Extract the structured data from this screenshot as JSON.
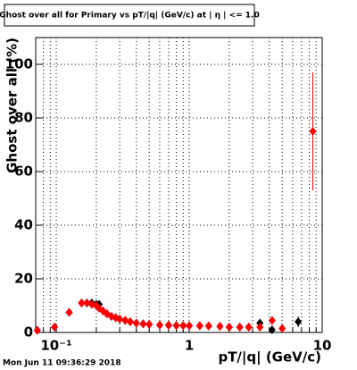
{
  "chart_data": {
    "type": "scatter",
    "title": "Ghost over all for Primary vs pT/|q| (GeV/c) at | η | <= 1.0",
    "x_label": "pT/|q| (GeV/c)",
    "y_label": "Ghost over all (%)",
    "timestamp": "Mon Jun 11 09:36:29 2018",
    "x": [
      0.072,
      0.097,
      0.125,
      0.155,
      0.17,
      0.185,
      0.2,
      0.21,
      0.225,
      0.24,
      0.26,
      0.28,
      0.3,
      0.33,
      0.36,
      0.4,
      0.45,
      0.5,
      0.6,
      0.7,
      0.8,
      0.9,
      1.0,
      1.2,
      1.4,
      1.7,
      2.0,
      2.4,
      2.8,
      3.4,
      4.2,
      5.0,
      6.6,
      8.5
    ],
    "series": [
      {
        "color": "#000000",
        "values": [
          0.8,
          2,
          7.5,
          11,
          11,
          11,
          10.5,
          10.5,
          8,
          7,
          6,
          5.5,
          5,
          4.5,
          4,
          3.5,
          3.2,
          3,
          2.8,
          2.7,
          2.6,
          2.6,
          2.5,
          2.5,
          2.4,
          2.3,
          2,
          2,
          2,
          3.5,
          1,
          null,
          4,
          null
        ],
        "errors": [
          0.5,
          0.5,
          0.8,
          0.8,
          0.8,
          0.8,
          0.7,
          0.7,
          0.6,
          0.6,
          0.5,
          0.5,
          0.5,
          0.4,
          0.4,
          0.4,
          0.3,
          0.3,
          0.3,
          0.3,
          0.3,
          0.3,
          0.3,
          0.3,
          0.3,
          0.4,
          0.4,
          0.5,
          0.6,
          1,
          1,
          null,
          2,
          null
        ]
      },
      {
        "color": "#ff0000",
        "values": [
          0.8,
          2,
          7.5,
          11,
          11,
          10.5,
          10,
          9,
          8,
          7,
          6,
          5.5,
          5,
          4.5,
          4,
          3.5,
          3.2,
          3,
          2.8,
          2.7,
          2.6,
          2.6,
          2.5,
          2.5,
          2.4,
          2.3,
          2,
          2,
          2,
          2,
          4.5,
          1.5,
          null,
          75
        ],
        "errors": [
          0.5,
          0.5,
          0.8,
          0.8,
          0.8,
          0.8,
          0.7,
          0.7,
          0.6,
          0.6,
          0.5,
          0.5,
          0.5,
          0.4,
          0.4,
          0.4,
          0.3,
          0.3,
          0.3,
          0.3,
          0.3,
          0.3,
          0.3,
          0.3,
          0.3,
          0.4,
          0.4,
          0.5,
          0.6,
          0.8,
          1.5,
          1,
          null,
          22
        ]
      }
    ],
    "xlim": [
      0.07,
      10
    ],
    "xscale": "log",
    "xticks": [
      {
        "value": 0.1,
        "label": "10⁻¹"
      },
      1,
      10
    ],
    "xminor_ticks": [
      0.08,
      0.09,
      0.2,
      0.3,
      0.4,
      0.5,
      0.6,
      0.7,
      0.8,
      0.9,
      2,
      3,
      4,
      5,
      6,
      7,
      8,
      9
    ],
    "ylim": [
      0,
      110
    ],
    "yticks": [
      0,
      20,
      40,
      60,
      80,
      100
    ],
    "grid": true
  }
}
